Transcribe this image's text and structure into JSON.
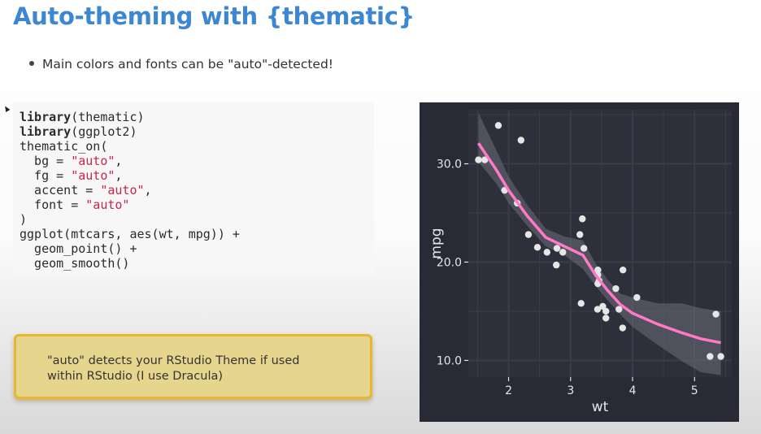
{
  "slide": {
    "title": "Auto-theming with {thematic}",
    "bullet": "Main colors and fonts can be \"auto\"-detected!"
  },
  "code": {
    "lines": [
      [
        {
          "t": "library",
          "k": "kw"
        },
        {
          "t": "(thematic)"
        }
      ],
      [
        {
          "t": "library",
          "k": "kw"
        },
        {
          "t": "(ggplot2)"
        }
      ],
      [
        {
          "t": "thematic_on("
        }
      ],
      [
        {
          "t": "  bg = "
        },
        {
          "t": "\"auto\"",
          "k": "str"
        },
        {
          "t": ","
        }
      ],
      [
        {
          "t": "  fg = "
        },
        {
          "t": "\"auto\"",
          "k": "str"
        },
        {
          "t": ","
        }
      ],
      [
        {
          "t": "  accent = "
        },
        {
          "t": "\"auto\"",
          "k": "str"
        },
        {
          "t": ","
        }
      ],
      [
        {
          "t": "  font = "
        },
        {
          "t": "\"auto\"",
          "k": "str"
        }
      ],
      [
        {
          "t": ")"
        }
      ],
      [
        {
          "t": "ggplot(mtcars, aes(wt, mpg)) +"
        }
      ],
      [
        {
          "t": "  geom_point() +"
        }
      ],
      [
        {
          "t": "  geom_smooth()"
        }
      ]
    ]
  },
  "callout": {
    "line1": "\"auto\" detects your RStudio Theme if used",
    "line2": "within RStudio (I use Dracula)"
  },
  "chart_data": {
    "type": "scatter",
    "title": "",
    "xlabel": "wt",
    "ylabel": "mpg",
    "xlim": [
      1.35,
      5.6
    ],
    "ylim": [
      8.3,
      35.5
    ],
    "xticks": [
      2,
      3,
      4,
      5
    ],
    "yticks": [
      10,
      20,
      30
    ],
    "grid": true,
    "colors": {
      "background": "#282a36",
      "panel": "#2d2f3b",
      "grid": "#3a3c48",
      "points": "#e6e6e6",
      "smooth": "#ff79c6",
      "band": "#6c6e7a",
      "text": "#e6e6e6"
    },
    "points": [
      [
        2.62,
        21.0
      ],
      [
        2.875,
        21.0
      ],
      [
        2.32,
        22.8
      ],
      [
        3.215,
        21.4
      ],
      [
        3.44,
        18.7
      ],
      [
        3.46,
        18.1
      ],
      [
        3.57,
        14.3
      ],
      [
        3.19,
        24.4
      ],
      [
        3.15,
        22.8
      ],
      [
        3.44,
        19.2
      ],
      [
        3.44,
        17.8
      ],
      [
        4.07,
        16.4
      ],
      [
        3.73,
        17.3
      ],
      [
        3.78,
        15.2
      ],
      [
        5.25,
        10.4
      ],
      [
        5.424,
        10.4
      ],
      [
        5.345,
        14.7
      ],
      [
        2.2,
        32.4
      ],
      [
        1.615,
        30.4
      ],
      [
        1.835,
        33.9
      ],
      [
        2.465,
        21.5
      ],
      [
        3.52,
        15.5
      ],
      [
        3.435,
        15.2
      ],
      [
        3.84,
        13.3
      ],
      [
        3.845,
        19.2
      ],
      [
        1.935,
        27.3
      ],
      [
        2.14,
        26.0
      ],
      [
        1.513,
        30.4
      ],
      [
        3.17,
        15.8
      ],
      [
        2.77,
        19.7
      ],
      [
        3.57,
        15.0
      ],
      [
        2.78,
        21.4
      ]
    ],
    "smooth": {
      "x": [
        1.513,
        1.8,
        2.0,
        2.3,
        2.6,
        2.9,
        3.2,
        3.4,
        3.6,
        3.8,
        4.0,
        4.4,
        4.8,
        5.1,
        5.424
      ],
      "y": [
        32.1,
        29.4,
        27.3,
        24.7,
        22.5,
        21.6,
        20.7,
        18.7,
        17.1,
        15.7,
        14.8,
        13.7,
        12.8,
        12.2,
        11.8
      ],
      "lo": [
        30.2,
        28.0,
        26.0,
        23.7,
        21.6,
        20.7,
        19.3,
        17.6,
        16.1,
        14.7,
        13.4,
        11.6,
        9.9,
        8.8,
        8.5
      ],
      "hi": [
        35.2,
        31.4,
        28.7,
        25.8,
        23.4,
        22.6,
        22.2,
        19.9,
        18.2,
        16.8,
        16.4,
        15.8,
        15.8,
        15.3,
        15.0
      ]
    }
  }
}
